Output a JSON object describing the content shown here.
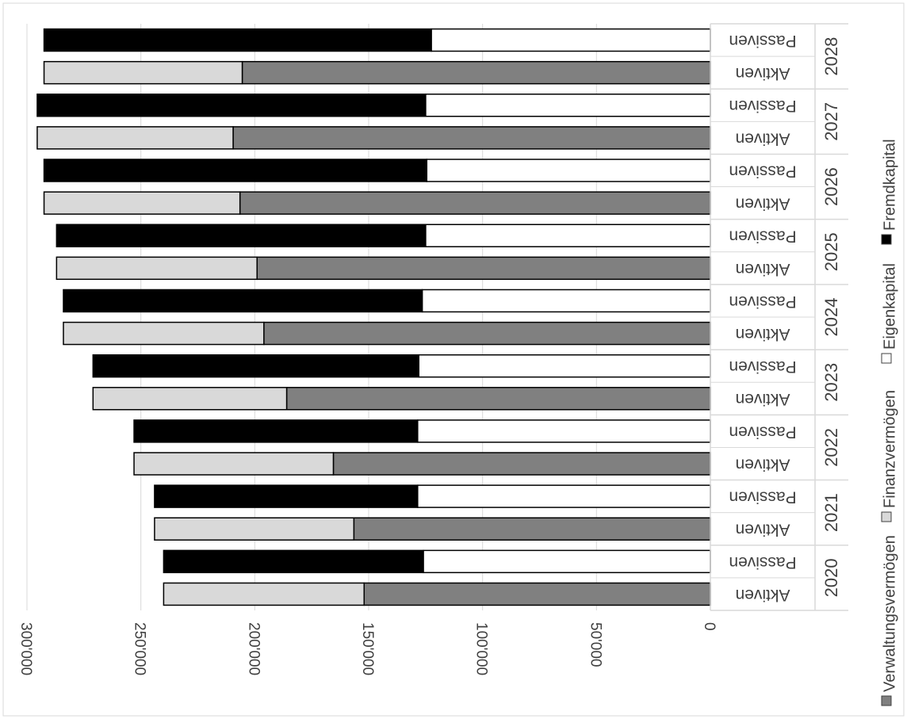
{
  "chart_data": {
    "type": "bar",
    "orientation": "horizontal-stacked",
    "rotated": "90deg-clockwise",
    "title": "",
    "xlabel": "",
    "ylabel": "",
    "xlim": [
      0,
      300000
    ],
    "x_ticks": [
      0,
      50000,
      100000,
      150000,
      200000,
      250000,
      300000
    ],
    "x_tick_labels": [
      "0",
      "50'000",
      "100'000",
      "150'000",
      "200'000",
      "250'000",
      "300'000"
    ],
    "grid": true,
    "legend_position": "right",
    "years": [
      "2020",
      "2021",
      "2022",
      "2023",
      "2024",
      "2025",
      "2026",
      "2027",
      "2028"
    ],
    "bar_labels": {
      "aktiven": "Aktiven",
      "passiven": "Passiven"
    },
    "categories": [
      "2020 Aktiven",
      "2020 Passiven",
      "2021 Aktiven",
      "2021 Passiven",
      "2022 Aktiven",
      "2022 Passiven",
      "2023 Aktiven",
      "2023 Passiven",
      "2024 Aktiven",
      "2024 Passiven",
      "2025 Aktiven",
      "2025 Passiven",
      "2026 Aktiven",
      "2026 Passiven",
      "2027 Aktiven",
      "2027 Passiven",
      "2028 Aktiven",
      "2028 Passiven"
    ],
    "series": [
      {
        "name": "Verwaltungsvermögen",
        "color": "#808080",
        "values": [
          152000,
          0,
          156500,
          0,
          165500,
          0,
          186000,
          0,
          196000,
          0,
          199000,
          0,
          206500,
          0,
          209500,
          0,
          205500,
          0
        ]
      },
      {
        "name": "Finanzvermögen",
        "color": "#d9d9d9",
        "values": [
          88000,
          0,
          87500,
          0,
          87500,
          0,
          85000,
          0,
          88000,
          0,
          88000,
          0,
          86000,
          0,
          86000,
          0,
          87000,
          0
        ]
      },
      {
        "name": "Eigenkapital",
        "color": "#ffffff",
        "values": [
          0,
          126000,
          0,
          128500,
          0,
          128500,
          0,
          128000,
          0,
          126500,
          0,
          125000,
          0,
          124500,
          0,
          125000,
          0,
          122500
        ]
      },
      {
        "name": "Fremdkapital",
        "color": "#000000",
        "values": [
          0,
          114000,
          0,
          115500,
          0,
          124500,
          0,
          143000,
          0,
          157500,
          0,
          162000,
          0,
          168000,
          0,
          170500,
          0,
          170000
        ]
      }
    ]
  }
}
